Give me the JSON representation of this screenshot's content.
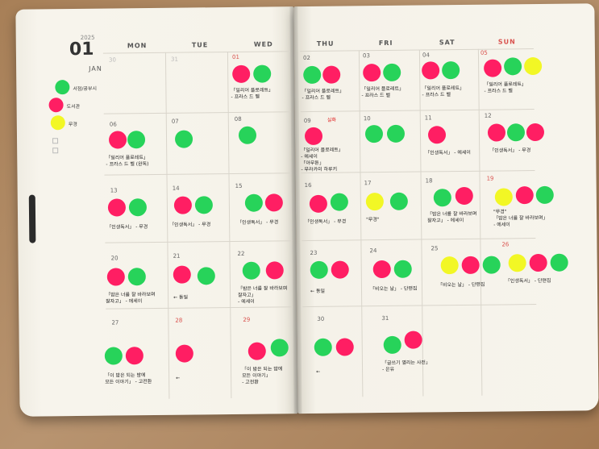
{
  "header": {
    "year": "2025",
    "month": "01",
    "month_name": "JAN"
  },
  "weekdays": [
    "MON",
    "TUE",
    "WED",
    "THU",
    "FRI",
    "SAT",
    "SUN"
  ],
  "legend": [
    {
      "color": "green",
      "label": "서점/공부시"
    },
    {
      "color": "pink",
      "label": "도서관"
    },
    {
      "color": "yellow",
      "label": "무경"
    }
  ],
  "days": {
    "d01": {
      "num": "01",
      "note": "「일리어 플로레트」\n- 프라스 드 벨"
    },
    "d02": {
      "num": "02",
      "note": "「일리어 플로레트」\n- 프라스 드 벨"
    },
    "d03": {
      "num": "03",
      "note": "「일리어 플로레트」\n- 프라스 드 벨"
    },
    "d04": {
      "num": "04",
      "note": "「일리어 플로레트」\n- 프라스 드 벨"
    },
    "d05": {
      "num": "05",
      "note": "「일리어 플로레트」\n- 프라스 드 벨"
    },
    "d06": {
      "num": "06",
      "note": "「일리어 플로레트」\n- 프라스 드 벨 (완독)"
    },
    "d07": {
      "num": "07"
    },
    "d08": {
      "num": "08"
    },
    "d09": {
      "num": "09",
      "note": "「일리어 플로레트」\n- 에세이\n「아무튼」\n- 무라카미 하루키"
    },
    "d10": {
      "num": "10"
    },
    "d11": {
      "num": "11",
      "note": "「인생독서」 - 에세이"
    },
    "d12": {
      "num": "12",
      "note": "「인생독서」 - 무경"
    },
    "d13": {
      "num": "13",
      "note": "「인생독서」 - 무경"
    },
    "d14": {
      "num": "14",
      "note": "「인생독서」 - 무경"
    },
    "d15": {
      "num": "15",
      "note": "「인생독서」 - 무경"
    },
    "d16": {
      "num": "16",
      "note": "「인생독서」 - 무경"
    },
    "d17": {
      "num": "17",
      "note": "\"무경\""
    },
    "d18": {
      "num": "18",
      "note": "「밤은 너를 잘 바라보며\n잘자고」 - 에세이"
    },
    "d19": {
      "num": "19",
      "note": "\"무경\"\n「밤은 너를 잘 바라보며」\n- 에세이"
    },
    "d20": {
      "num": "20",
      "note": "「밤은 너를 잘 바라보며\n잘자고」 - 에세이"
    },
    "d21": {
      "num": "21",
      "note": "← 동일"
    },
    "d22": {
      "num": "22",
      "note": "「밤은 너를 잘 바라보며\n잘자고」\n- 에세이"
    },
    "d23": {
      "num": "23",
      "note": "← 동일"
    },
    "d24": {
      "num": "24",
      "note": "「비오는 날」 - 단편집"
    },
    "d25": {
      "num": "25",
      "note": "「비오는 날」 - 단편집"
    },
    "d26": {
      "num": "26",
      "note": "「인생독서」 - 단편집"
    },
    "d27": {
      "num": "27",
      "note": "「이 밤은 되는 밤에\n모든 이야기」 - 고전환"
    },
    "d28": {
      "num": "28",
      "note": "←"
    },
    "d29": {
      "num": "29",
      "note": "「이 밤은 되는 밤에\n모든 이야기」\n- 고전환"
    },
    "d30": {
      "num": "30",
      "note": "←"
    },
    "d31": {
      "num": "31",
      "note": "「글쓰기 열리는 사전」\n- 은유"
    },
    "d09_extra": {
      "note": "실화"
    }
  }
}
